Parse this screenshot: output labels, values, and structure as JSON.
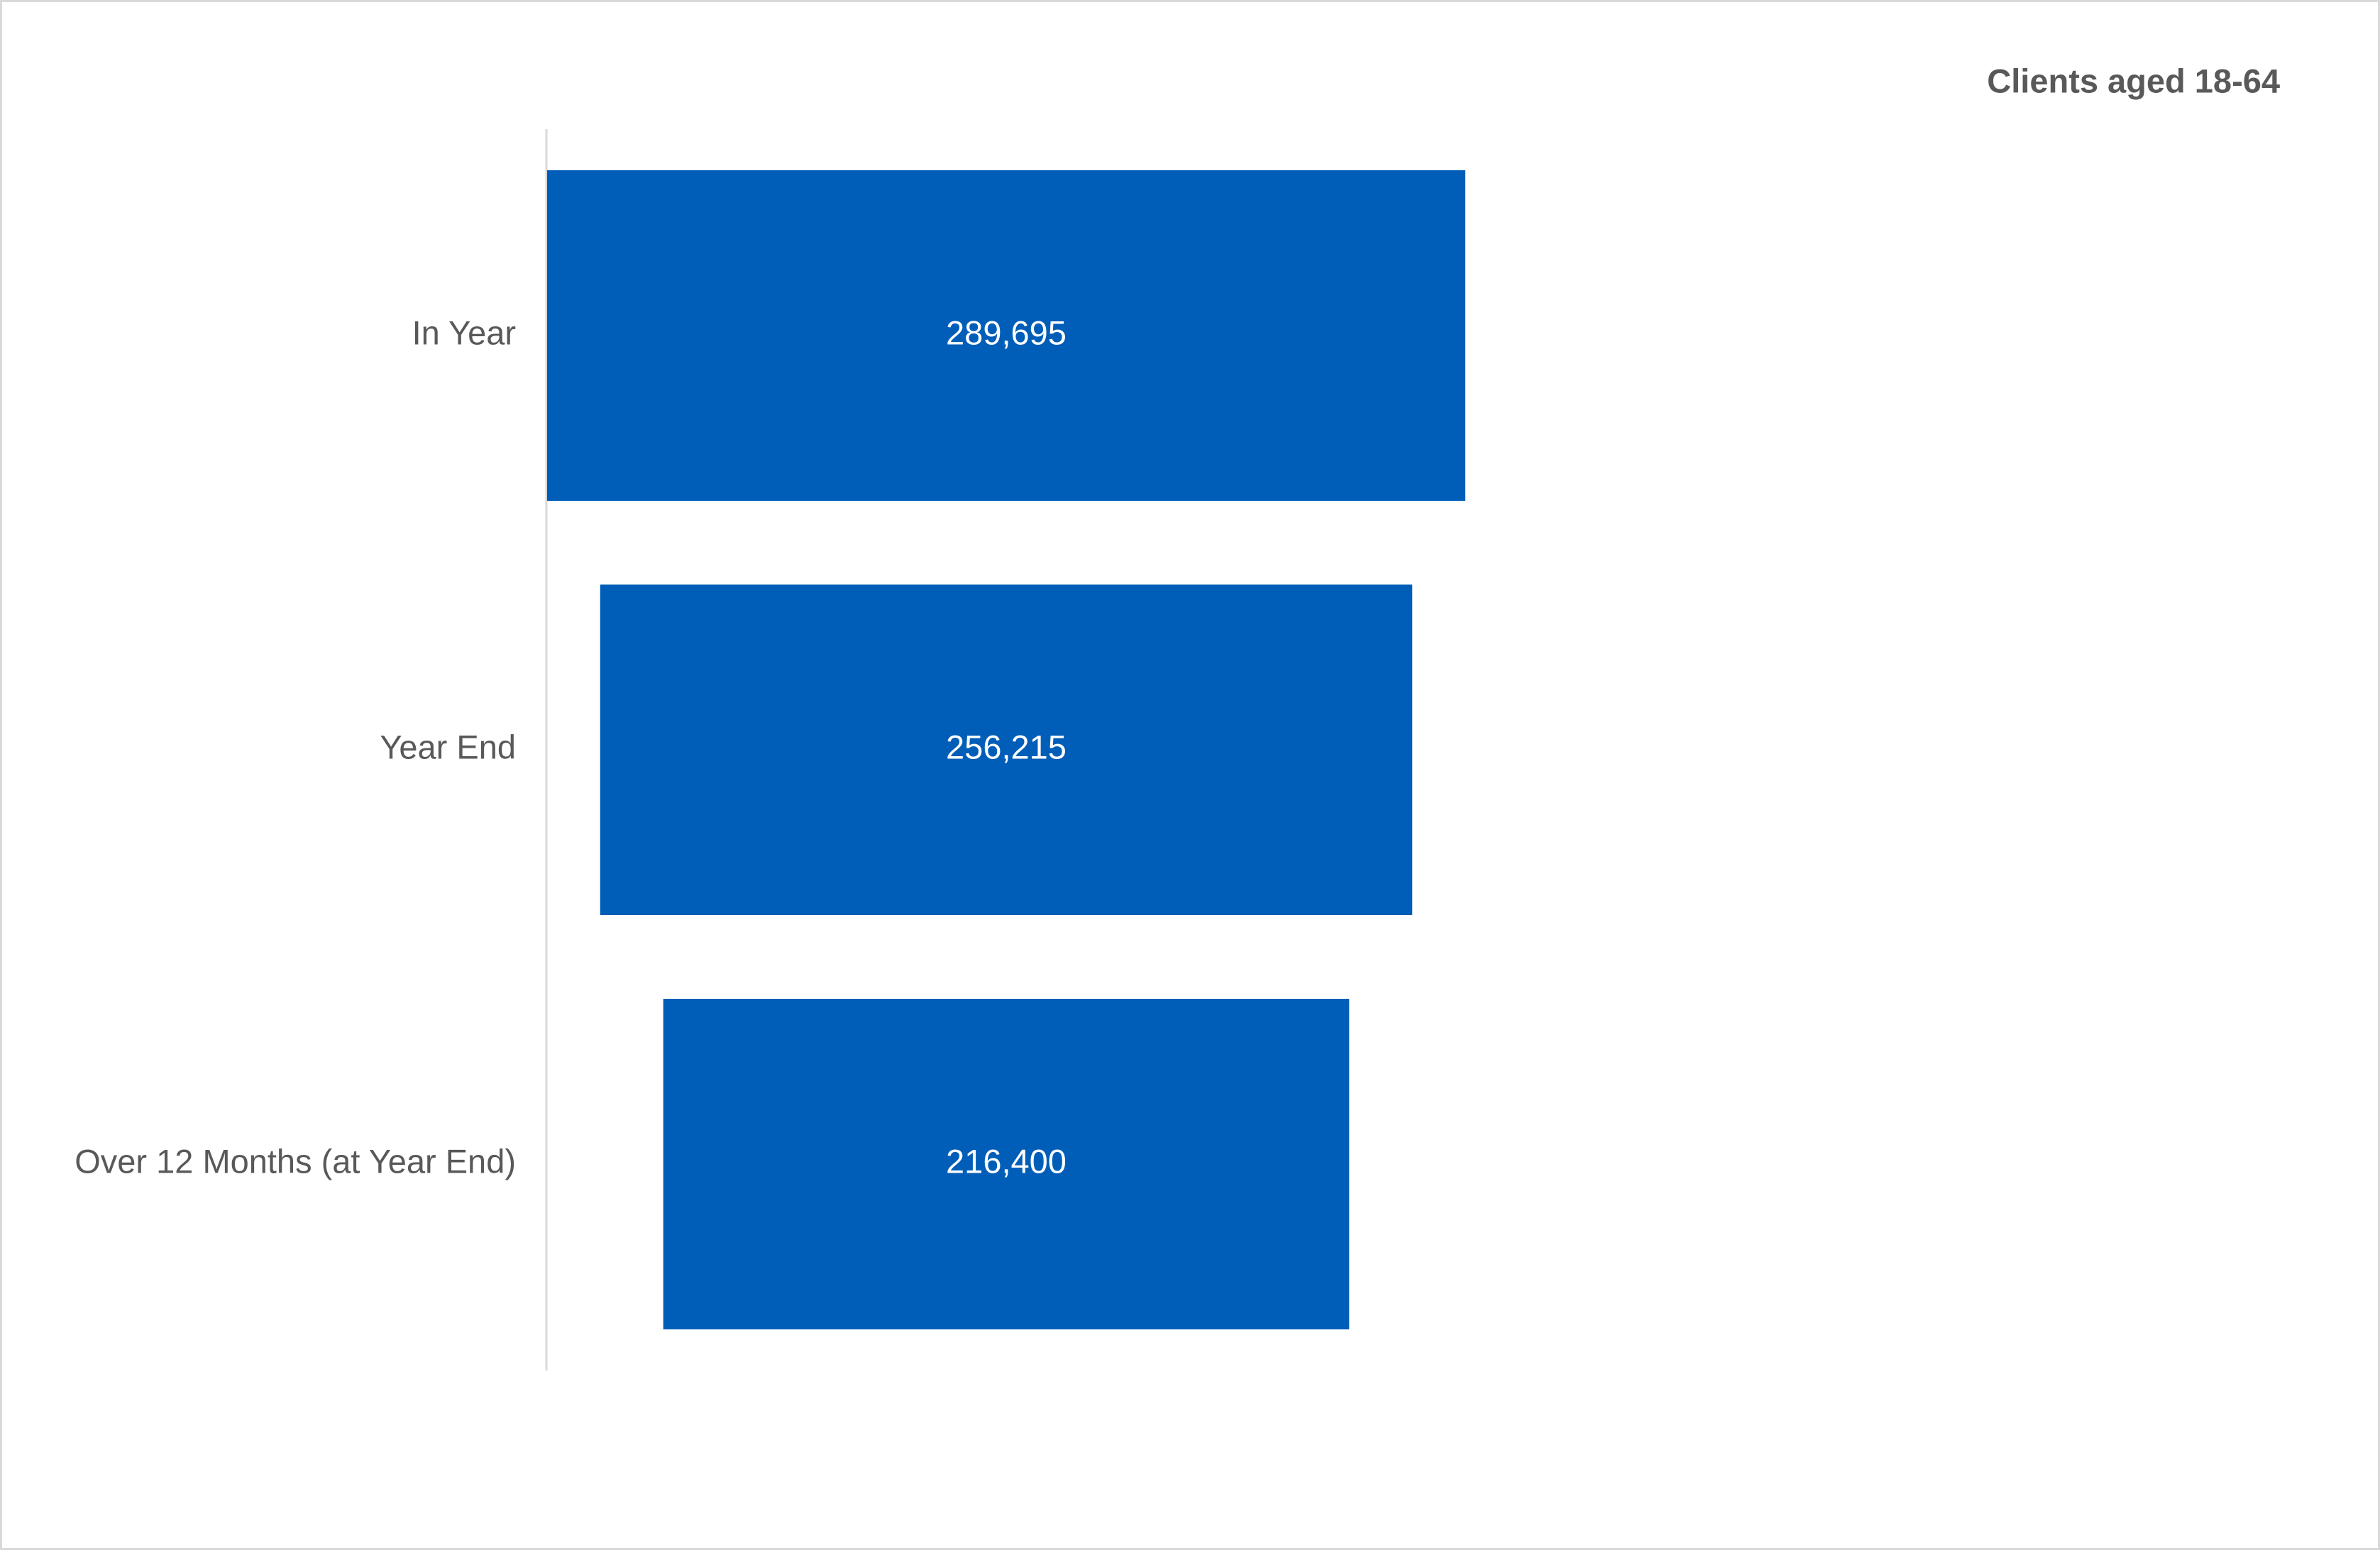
{
  "chart_data": {
    "type": "funnel",
    "title": "Clients aged 18-64",
    "categories": [
      "In Year",
      "Year End",
      "Over 12 Months (at Year End)"
    ],
    "values": [
      289695,
      256215,
      216400
    ],
    "value_labels": [
      "289,695",
      "256,215",
      "216,400"
    ],
    "color": "#005EB8"
  }
}
